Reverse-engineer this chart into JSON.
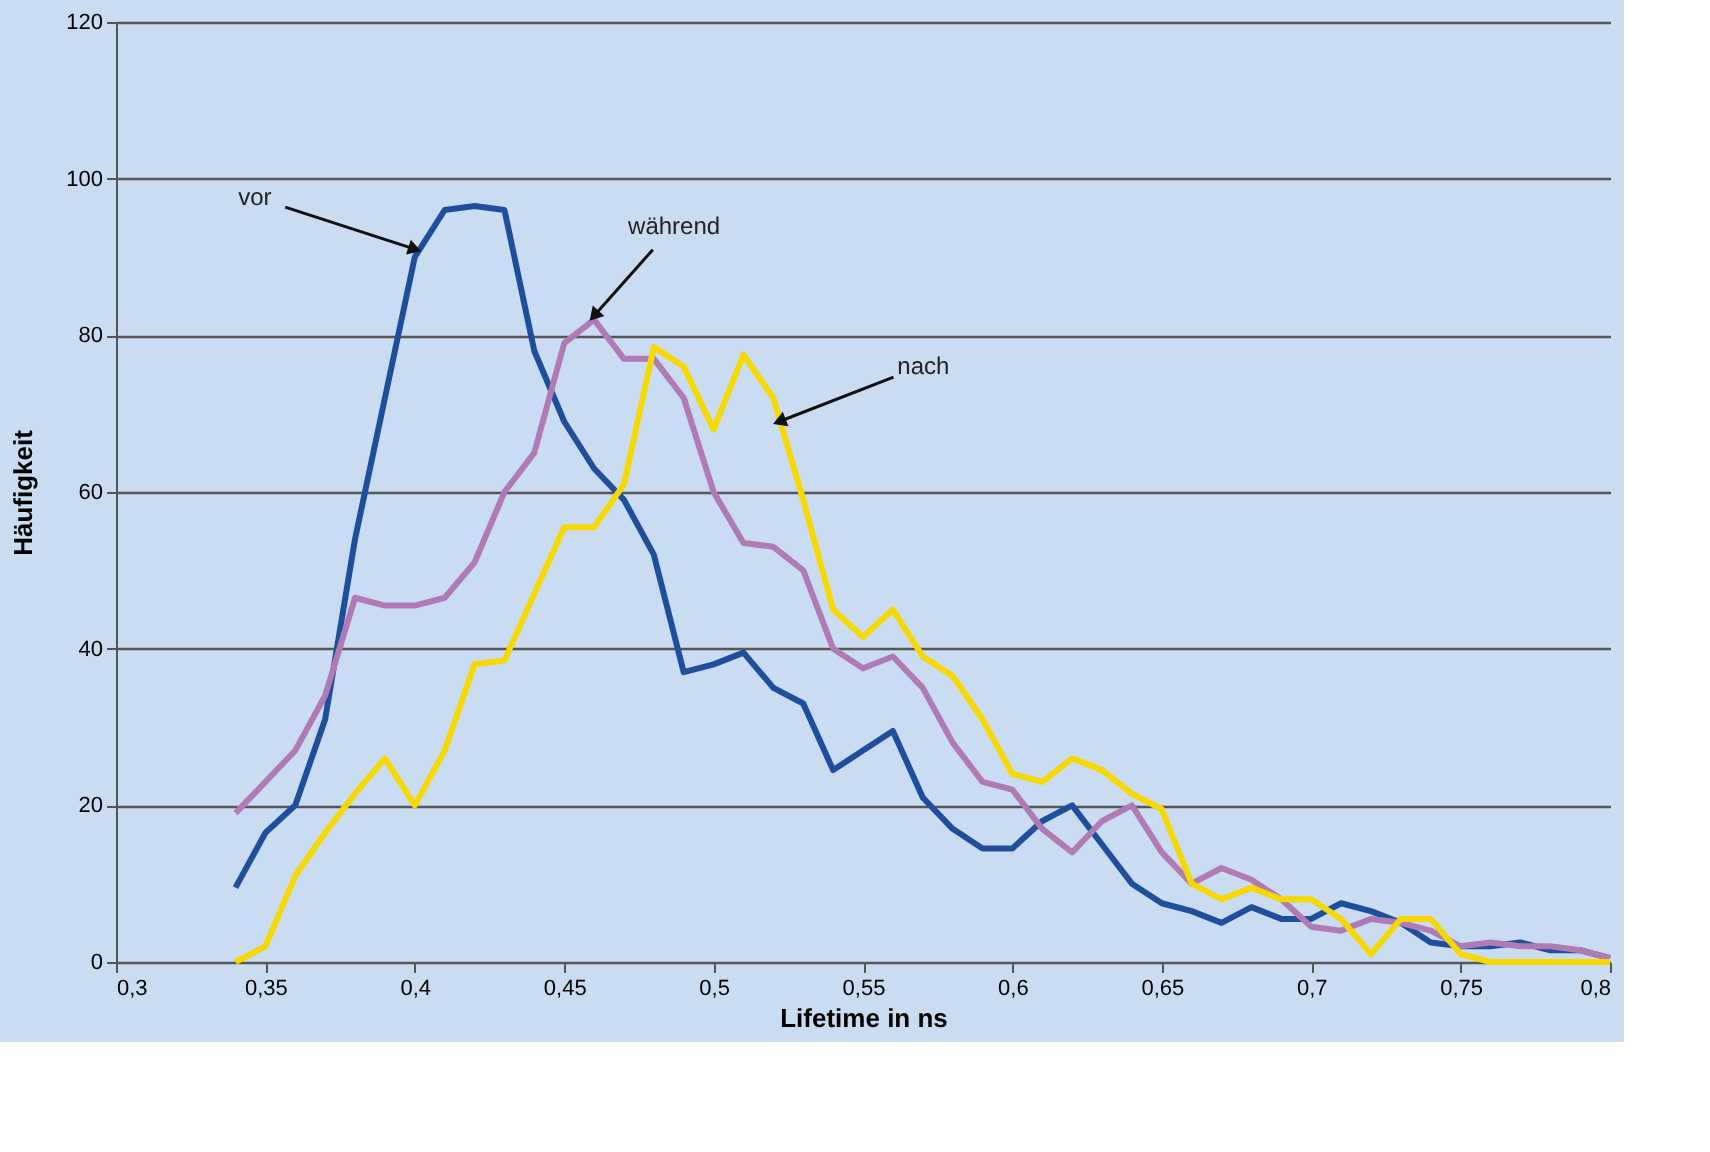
{
  "chart_data": {
    "type": "line",
    "xlabel": "Lifetime in ns",
    "ylabel": "Häufigkeit",
    "x": [
      0.34,
      0.35,
      0.36,
      0.37,
      0.38,
      0.39,
      0.4,
      0.41,
      0.42,
      0.43,
      0.44,
      0.45,
      0.46,
      0.47,
      0.48,
      0.49,
      0.5,
      0.51,
      0.52,
      0.53,
      0.54,
      0.55,
      0.56,
      0.57,
      0.58,
      0.59,
      0.6,
      0.61,
      0.62,
      0.63,
      0.64,
      0.65,
      0.66,
      0.67,
      0.68,
      0.69,
      0.7,
      0.71,
      0.72,
      0.73,
      0.74,
      0.75,
      0.76,
      0.77,
      0.78,
      0.79,
      0.8
    ],
    "series": [
      {
        "color": "#1f4e9a",
        "values": [
          9.5,
          16.5,
          20,
          31,
          54,
          72,
          90,
          96,
          96.5,
          96,
          78,
          69,
          63,
          59,
          52,
          37,
          38,
          39.5,
          35,
          33,
          24.5,
          27,
          29.5,
          21,
          17,
          14.5,
          14.5,
          18,
          20,
          15,
          10,
          7.5,
          6.5,
          5,
          7,
          5.5,
          5.5,
          7.5,
          6.5,
          5,
          2.5,
          2,
          2,
          2.5,
          1.5,
          1.5,
          0.5
        ]
      },
      {
        "color": "#b07bb4",
        "values": [
          19,
          23,
          27,
          34,
          46.5,
          45.5,
          45.5,
          46.5,
          51,
          60,
          65,
          79,
          82,
          77,
          77,
          72,
          60,
          53.5,
          53,
          50,
          40,
          37.5,
          39,
          35,
          28,
          23,
          22,
          17,
          14,
          18,
          20,
          14,
          10,
          12,
          10.5,
          8,
          4.5,
          4,
          5.5,
          5,
          4,
          2,
          2.5,
          2,
          2,
          1.5,
          0.5
        ]
      },
      {
        "color": "#f5d800",
        "values": [
          0,
          2,
          11,
          16.5,
          21.5,
          26,
          20,
          27,
          38,
          38.5,
          47,
          55.5,
          55.5,
          61,
          78.5,
          76,
          68,
          77.5,
          72,
          59,
          45,
          41.5,
          45,
          39,
          36.5,
          31,
          24,
          23,
          26,
          24.5,
          21.5,
          19.5,
          10,
          8,
          9.5,
          8,
          8,
          5.5,
          1,
          5.5,
          5.5,
          1,
          0,
          0,
          0,
          0,
          0
        ]
      }
    ],
    "xlim": [
      0.3,
      0.8
    ],
    "xticks": [
      {
        "value": 0.3,
        "label": "0,3"
      },
      {
        "value": 0.35,
        "label": "0,35"
      },
      {
        "value": 0.4,
        "label": "0,4"
      },
      {
        "value": 0.45,
        "label": "0,45"
      },
      {
        "value": 0.5,
        "label": "0,5"
      },
      {
        "value": 0.55,
        "label": "0,55"
      },
      {
        "value": 0.6,
        "label": "0,6"
      },
      {
        "value": 0.65,
        "label": "0,65"
      },
      {
        "value": 0.7,
        "label": "0,7"
      },
      {
        "value": 0.75,
        "label": "0,75"
      },
      {
        "value": 0.8,
        "label": "0,8"
      }
    ],
    "ylim": [
      0,
      120
    ],
    "yticks": [
      0,
      20,
      40,
      60,
      80,
      100,
      120
    ],
    "grid": "y",
    "marker": "none",
    "line_style": "solid",
    "annotations": [
      {
        "text": "vor",
        "x": 0.4,
        "y": 91
      },
      {
        "text": "während",
        "x": 0.46,
        "y": 82.5
      },
      {
        "text": "nach",
        "x": 0.522,
        "y": 69
      }
    ]
  }
}
